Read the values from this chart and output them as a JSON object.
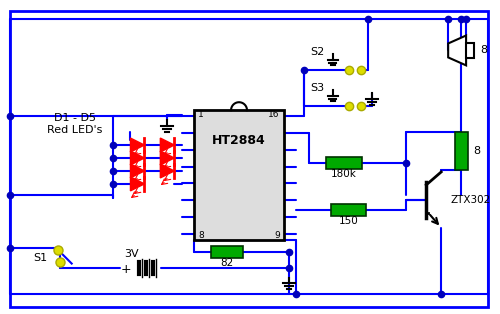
{
  "bg": "#ffffff",
  "wc": "#0000ff",
  "blk": "#000000",
  "rc": "#00aa00",
  "lc": "#ff0000",
  "yc": "#dddd00",
  "ic_fc": "#dddddd",
  "fig_w": 5.0,
  "fig_h": 3.14,
  "dpi": 100,
  "ic_label": "HT2884",
  "title_label": "D1 - D5",
  "led_label": "Red LED's",
  "s1_label": "S1",
  "s2_label": "S2",
  "s3_label": "S3",
  "r82_label": "82",
  "r180k_label": "180k",
  "r150_label": "150",
  "transistor_label": "ZTX302",
  "spk_ohm": "8",
  "r8_ohm": "8",
  "batt_label": "3V",
  "pin1": "1",
  "pin8": "8",
  "pin9": "9",
  "pin16": "16"
}
